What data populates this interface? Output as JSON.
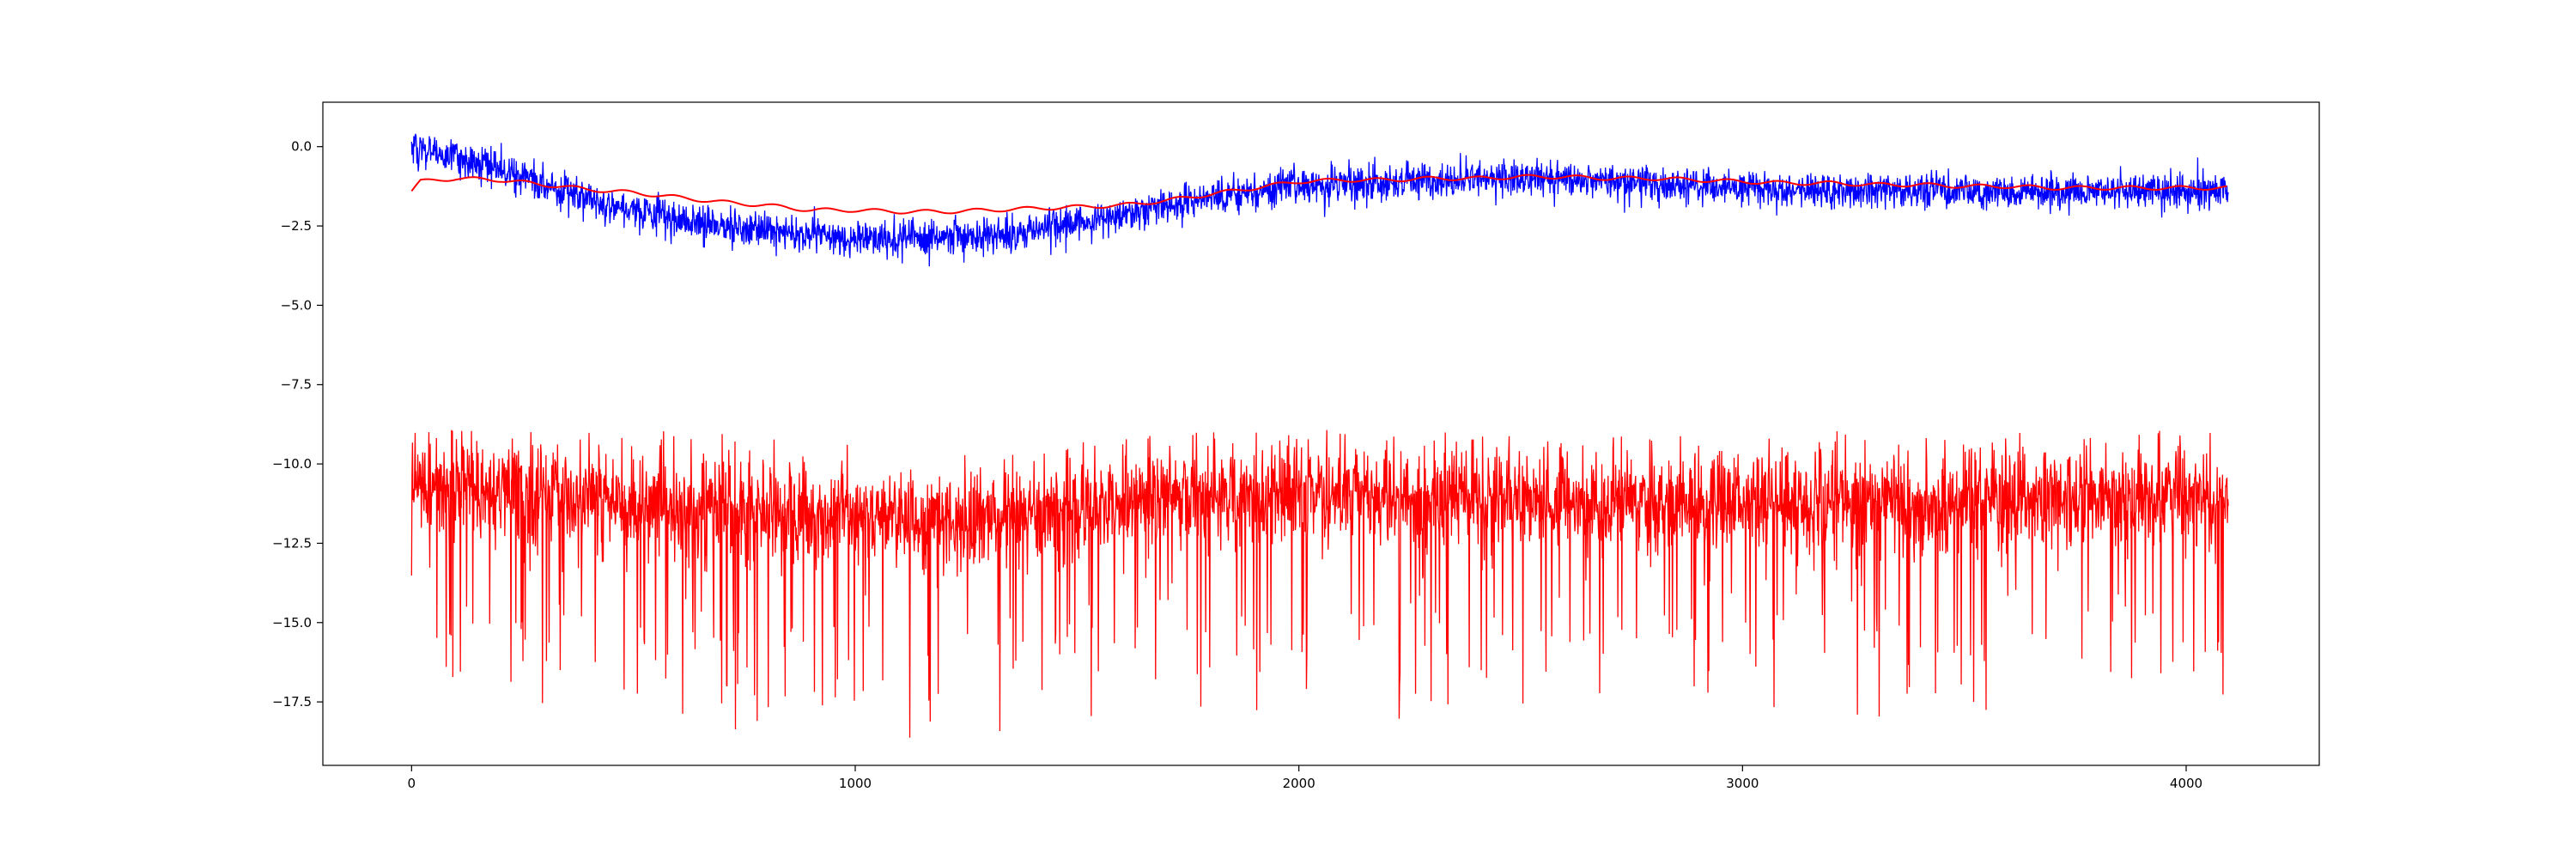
{
  "chart_data": {
    "type": "line",
    "title": "",
    "xlabel": "",
    "ylabel": "",
    "xlim": [
      -200,
      4300
    ],
    "ylim": [
      -19.5,
      1.4
    ],
    "x_ticks": [
      0,
      1000,
      2000,
      3000,
      4000
    ],
    "y_ticks": [
      0.0,
      -2.5,
      -5.0,
      -7.5,
      -10.0,
      -12.5,
      -15.0,
      -17.5
    ],
    "x_tick_labels": [
      "0",
      "1000",
      "2000",
      "3000",
      "4000"
    ],
    "y_tick_labels": [
      "0.0",
      "−2.5",
      "−5.0",
      "−7.5",
      "−10.0",
      "−12.5",
      "−15.0",
      "−17.5"
    ],
    "grid": false,
    "n_points": 4096,
    "series": [
      {
        "color": "#0000ff",
        "trend_x": [
          0,
          150,
          300,
          450,
          600,
          750,
          900,
          1050,
          1200,
          1350,
          1500,
          1650,
          1800,
          1950,
          2100,
          2250,
          2400,
          2550,
          2700,
          2850,
          3000,
          3150,
          3300,
          3450,
          3600,
          3750,
          3900,
          4095
        ],
        "trend_y": [
          0.0,
          -0.5,
          -1.2,
          -1.8,
          -2.3,
          -2.6,
          -2.8,
          -2.9,
          -2.9,
          -2.7,
          -2.4,
          -2.0,
          -1.6,
          -1.3,
          -1.2,
          -1.1,
          -1.0,
          -1.0,
          -1.1,
          -1.2,
          -1.3,
          -1.4,
          -1.4,
          -1.4,
          -1.4,
          -1.4,
          -1.4,
          -1.4
        ],
        "noise_amplitude": 0.28
      },
      {
        "color": "#ff0000",
        "x": [
          0,
          20,
          100,
          200,
          300,
          400,
          500,
          600,
          700,
          800,
          900,
          1000,
          1100,
          1200,
          1300,
          1400,
          1500,
          1600,
          1700,
          1800,
          1900,
          2000,
          2100,
          2200,
          2300,
          2400,
          2500,
          2600,
          2700,
          2800,
          2900,
          3000,
          3100,
          3200,
          3300,
          3400,
          3500,
          3600,
          3700,
          3800,
          3900,
          4000,
          4095
        ],
        "y": [
          -1.4,
          -1.1,
          -1.0,
          -1.05,
          -1.2,
          -1.35,
          -1.45,
          -1.6,
          -1.75,
          -1.85,
          -2.0,
          -2.0,
          -2.05,
          -2.05,
          -2.0,
          -1.95,
          -1.9,
          -1.85,
          -1.7,
          -1.5,
          -1.3,
          -1.1,
          -1.05,
          -1.05,
          -1.0,
          -1.0,
          -0.95,
          -0.95,
          -1.0,
          -1.0,
          -1.05,
          -1.1,
          -1.15,
          -1.15,
          -1.2,
          -1.2,
          -1.25,
          -1.25,
          -1.3,
          -1.3,
          -1.3,
          -1.3,
          -1.3
        ]
      },
      {
        "color": "#ff0000",
        "trend_x": [
          0,
          500,
          1000,
          1300,
          1600,
          2000,
          2500,
          3000,
          3500,
          4095
        ],
        "trend_y": [
          -10.6,
          -11.3,
          -11.7,
          -11.9,
          -11.3,
          -11.0,
          -11.2,
          -11.3,
          -11.2,
          -11.1
        ],
        "spread_up": 1.5,
        "spread_down": 3.5,
        "min": -18.7,
        "max": -8.9
      }
    ]
  }
}
